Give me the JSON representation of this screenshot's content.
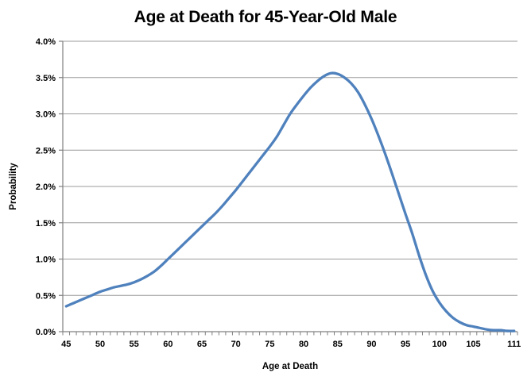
{
  "chart_data": {
    "type": "line",
    "title": "Age at Death for 45-Year-Old Male",
    "xlabel": "Age at Death",
    "ylabel": "Probability",
    "legend": "none",
    "grid": "horizontal",
    "smoothed_line": true,
    "x": [
      45,
      46,
      47,
      48,
      49,
      50,
      51,
      52,
      53,
      54,
      55,
      56,
      57,
      58,
      59,
      60,
      61,
      62,
      63,
      64,
      65,
      66,
      67,
      68,
      69,
      70,
      71,
      72,
      73,
      74,
      75,
      76,
      77,
      78,
      79,
      80,
      81,
      82,
      83,
      84,
      85,
      86,
      87,
      88,
      89,
      90,
      91,
      92,
      93,
      94,
      95,
      96,
      97,
      98,
      99,
      100,
      101,
      102,
      103,
      104,
      105,
      106,
      107,
      108,
      109,
      110,
      111
    ],
    "series": [
      {
        "name": "Probability",
        "unit": "%",
        "values": [
          0.35,
          0.39,
          0.43,
          0.47,
          0.51,
          0.55,
          0.58,
          0.61,
          0.63,
          0.65,
          0.68,
          0.72,
          0.77,
          0.83,
          0.91,
          1.0,
          1.09,
          1.18,
          1.27,
          1.36,
          1.45,
          1.54,
          1.63,
          1.73,
          1.84,
          1.95,
          2.07,
          2.19,
          2.31,
          2.43,
          2.55,
          2.68,
          2.84,
          3.0,
          3.13,
          3.25,
          3.36,
          3.45,
          3.52,
          3.56,
          3.55,
          3.5,
          3.42,
          3.3,
          3.13,
          2.93,
          2.7,
          2.45,
          2.18,
          1.9,
          1.62,
          1.35,
          1.05,
          0.78,
          0.56,
          0.4,
          0.28,
          0.19,
          0.13,
          0.09,
          0.07,
          0.05,
          0.03,
          0.02,
          0.02,
          0.01,
          0.01
        ]
      }
    ],
    "ylim": [
      0,
      4.0
    ],
    "y_tick_step": 0.5,
    "y_ticklabels": [
      "0.0%",
      "0.5%",
      "1.0%",
      "1.5%",
      "2.0%",
      "2.5%",
      "3.0%",
      "3.5%",
      "4.0%"
    ],
    "x_ticks": [
      {
        "label": "45",
        "age": 45
      },
      {
        "label": "50",
        "age": 50
      },
      {
        "label": "55",
        "age": 55
      },
      {
        "label": "60",
        "age": 60
      },
      {
        "label": "65",
        "age": 65
      },
      {
        "label": "70",
        "age": 70
      },
      {
        "label": "75",
        "age": 75
      },
      {
        "label": "80",
        "age": 80
      },
      {
        "label": "85",
        "age": 85
      },
      {
        "label": "90",
        "age": 90
      },
      {
        "label": "95",
        "age": 95
      },
      {
        "label": "100",
        "age": 100
      },
      {
        "label": "105",
        "age": 105
      },
      {
        "label": "111",
        "age": 111
      }
    ],
    "colors": {
      "line": "#4F81BD",
      "gridline": "#9B9B9B",
      "axis": "#808080",
      "text": "#000000",
      "background": "#FFFFFF"
    }
  }
}
